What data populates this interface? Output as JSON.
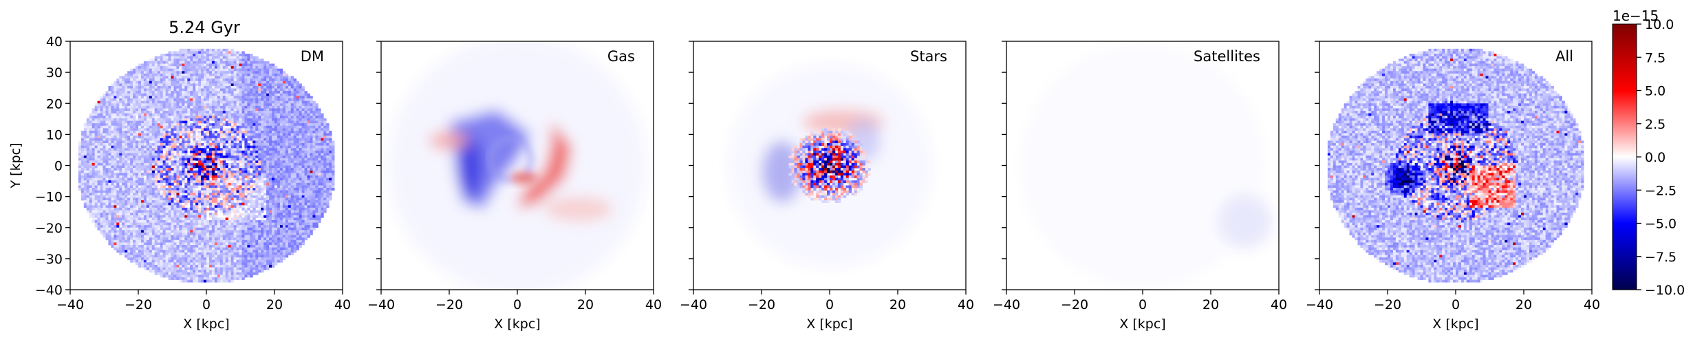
{
  "figure_title": "5.24 Gyr",
  "chart_data": {
    "type": "heatmap",
    "xlabel": "X [kpc]",
    "ylabel": "Y [kpc]",
    "xlim": [
      -40,
      40
    ],
    "ylim": [
      -40,
      40
    ],
    "xticks": [
      "−40",
      "−20",
      "0",
      "20",
      "40"
    ],
    "yticks": [
      "40",
      "30",
      "20",
      "10",
      "0",
      "−10",
      "−20",
      "−30",
      "−40"
    ],
    "grid": false,
    "panels": [
      {
        "label": "DM",
        "component": "dark matter"
      },
      {
        "label": "Gas",
        "component": "gas"
      },
      {
        "label": "Stars",
        "component": "stars"
      },
      {
        "label": "Satellites",
        "component": "satellites"
      },
      {
        "label": "All",
        "component": "total"
      }
    ],
    "colorbar": {
      "colormap": "seismic",
      "vmin": -10.0,
      "vmax": 10.0,
      "multiplier": "1e−15",
      "ticks": [
        "10.0",
        "7.5",
        "5.0",
        "2.5",
        "0.0",
        "−2.5",
        "−5.0",
        "−7.5",
        "−10.0"
      ],
      "colors": {
        "low": "#00004c",
        "mid": "#ffffff",
        "high": "#800000"
      }
    }
  }
}
